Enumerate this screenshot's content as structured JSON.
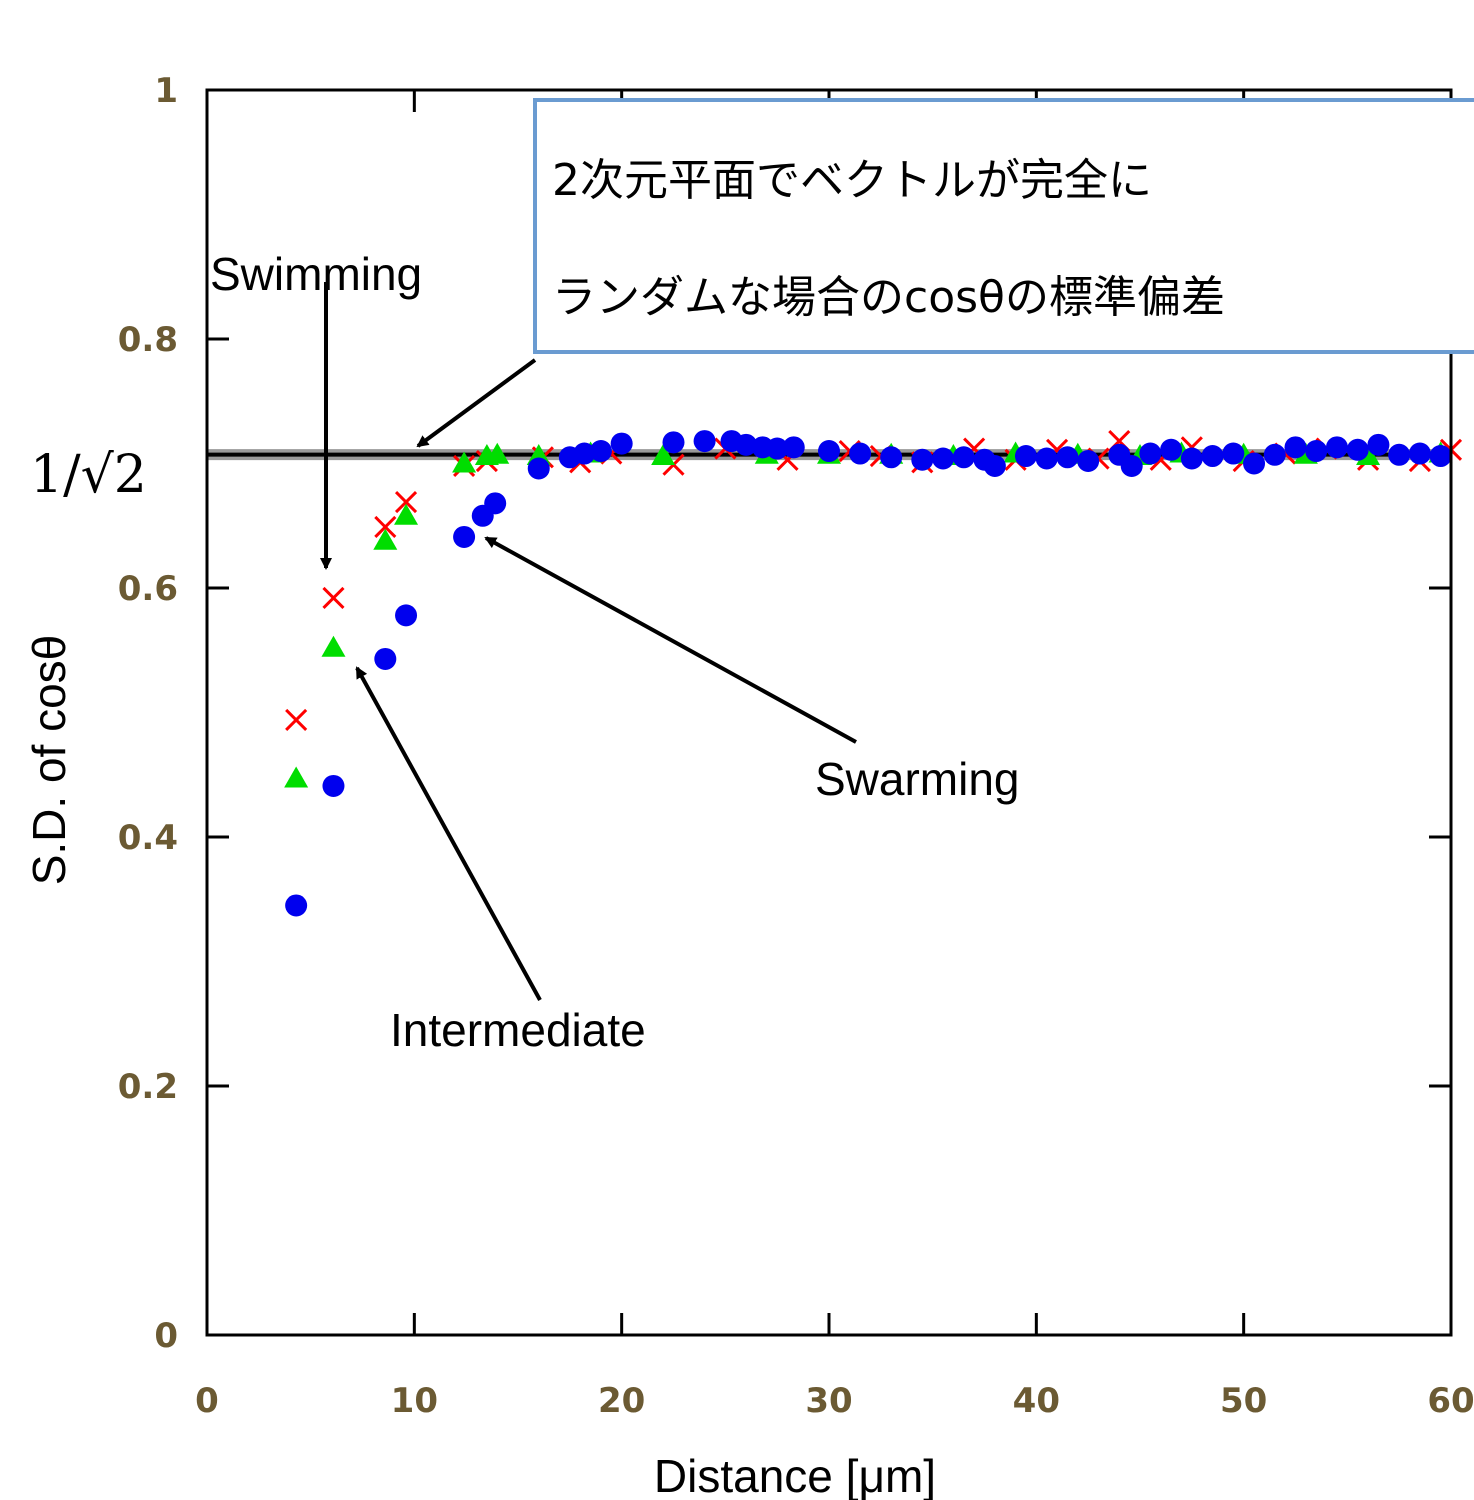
{
  "chart_data": {
    "type": "scatter",
    "xlabel": "Distance [μm]",
    "ylabel": "S.D. of cosθ",
    "xlim": [
      0,
      60
    ],
    "ylim": [
      0,
      1
    ],
    "x_ticks": [
      "0",
      "10",
      "20",
      "30",
      "40",
      "50",
      "60"
    ],
    "y_ticks": [
      "0",
      "0.2",
      "0.4",
      "0.6",
      "0.8",
      "1"
    ],
    "grid": false,
    "reference_line": {
      "y": 0.7071,
      "label": "1/√2",
      "color": "#000000"
    },
    "textbox": {
      "lines": [
        "2次元平面でベクトルが完全に",
        "ランダムな場合のcosθの標準偏差"
      ],
      "border_color": "#6a9bd1"
    },
    "annotations": [
      {
        "text": "Swimming",
        "points_to": [
          5.9,
          0.59
        ]
      },
      {
        "text": "Intermediate",
        "points_to": [
          6.8,
          0.535
        ]
      },
      {
        "text": "Swarming",
        "points_to": [
          12.8,
          0.64
        ]
      }
    ],
    "series": [
      {
        "marker": "x",
        "color": "#ff0000",
        "x": [
          4.3,
          6.1,
          8.6,
          9.6,
          12.4,
          13.5,
          16.2,
          18.0,
          19.5,
          22.5,
          25.0,
          28.0,
          31.0,
          32.5,
          34.5,
          37.0,
          39.0,
          41.0,
          43.0,
          44.0,
          46.0,
          47.5,
          50.0,
          52.0,
          54.0,
          56.0,
          58.5,
          60.0
        ],
        "y": [
          0.494,
          0.592,
          0.649,
          0.669,
          0.698,
          0.702,
          0.705,
          0.701,
          0.708,
          0.699,
          0.712,
          0.703,
          0.71,
          0.706,
          0.701,
          0.712,
          0.703,
          0.711,
          0.704,
          0.718,
          0.703,
          0.713,
          0.702,
          0.708,
          0.712,
          0.703,
          0.702,
          0.711
        ]
      },
      {
        "marker": "triangle",
        "color": "#00dd00",
        "x": [
          4.3,
          6.1,
          8.6,
          9.6,
          12.4,
          13.5,
          14.0,
          16.0,
          18.5,
          22.0,
          27.0,
          30.0,
          33.0,
          36.0,
          39.0,
          42.0,
          45.0,
          47.0,
          50.0,
          53.0,
          56.0,
          59.5
        ],
        "y": [
          0.447,
          0.552,
          0.638,
          0.658,
          0.7,
          0.706,
          0.707,
          0.706,
          0.708,
          0.706,
          0.707,
          0.707,
          0.707,
          0.706,
          0.708,
          0.707,
          0.706,
          0.708,
          0.707,
          0.707,
          0.706,
          0.708
        ]
      },
      {
        "marker": "circle",
        "color": "#0000ee",
        "x": [
          4.3,
          6.1,
          8.6,
          9.6,
          12.4,
          13.3,
          13.9,
          16.0,
          17.5,
          18.2,
          19.0,
          20.0,
          22.5,
          24.0,
          25.3,
          26.0,
          26.8,
          27.5,
          28.3,
          30.0,
          31.5,
          33.0,
          34.5,
          35.5,
          36.5,
          37.5,
          38.0,
          39.5,
          40.5,
          41.5,
          42.5,
          44.0,
          44.6,
          45.5,
          46.5,
          47.5,
          48.5,
          49.5,
          50.5,
          51.5,
          52.5,
          53.5,
          54.5,
          55.5,
          56.5,
          57.5,
          58.5,
          59.5
        ],
        "y": [
          0.345,
          0.441,
          0.543,
          0.578,
          0.641,
          0.658,
          0.668,
          0.696,
          0.705,
          0.708,
          0.71,
          0.716,
          0.717,
          0.718,
          0.718,
          0.715,
          0.713,
          0.712,
          0.713,
          0.71,
          0.708,
          0.705,
          0.703,
          0.704,
          0.705,
          0.703,
          0.698,
          0.706,
          0.704,
          0.705,
          0.702,
          0.707,
          0.698,
          0.708,
          0.711,
          0.704,
          0.706,
          0.708,
          0.7,
          0.707,
          0.713,
          0.71,
          0.713,
          0.711,
          0.715,
          0.707,
          0.708,
          0.706
        ]
      }
    ]
  }
}
